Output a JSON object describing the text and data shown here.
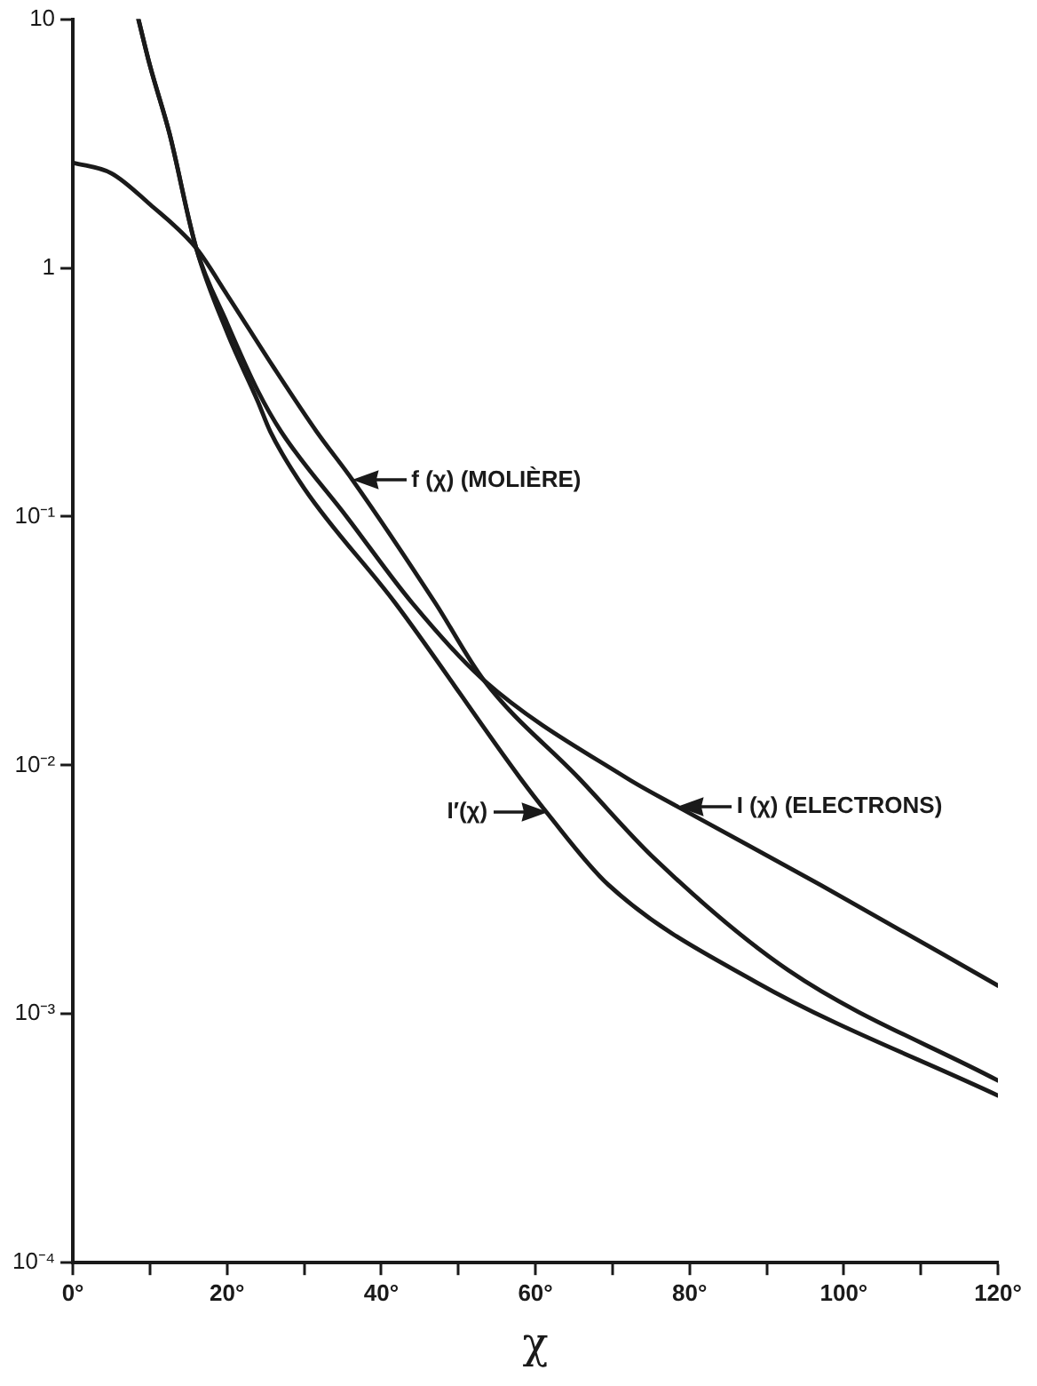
{
  "chart_data": {
    "type": "line",
    "xlabel": "χ",
    "log": "y",
    "grid": false,
    "legend": false,
    "marker": "none",
    "line_style": "solid",
    "xlim": [
      0,
      120
    ],
    "ylim": [
      0.0001,
      10
    ],
    "xticks": [
      {
        "value": 0,
        "label": "0°"
      },
      {
        "value": 10,
        "label": null
      },
      {
        "value": 20,
        "label": "20°"
      },
      {
        "value": 30,
        "label": null
      },
      {
        "value": 40,
        "label": "40°"
      },
      {
        "value": 50,
        "label": null
      },
      {
        "value": 60,
        "label": "60°"
      },
      {
        "value": 70,
        "label": null
      },
      {
        "value": 80,
        "label": "80°"
      },
      {
        "value": 90,
        "label": null
      },
      {
        "value": 100,
        "label": "100°"
      },
      {
        "value": 110,
        "label": null
      },
      {
        "value": 120,
        "label": "120°"
      }
    ],
    "yticks": [
      {
        "value": 0.0001,
        "label": "10⁻⁴"
      },
      {
        "value": 0.001,
        "label": "10⁻³"
      },
      {
        "value": 0.01,
        "label": "10⁻²"
      },
      {
        "value": 0.1,
        "label": "10⁻¹"
      },
      1,
      10
    ],
    "series": [
      {
        "color": "#1a1a1a",
        "x": [
          0,
          5,
          10,
          16,
          20,
          26,
          31.6,
          36.3,
          47,
          53.3,
          65.6,
          75.5,
          92.8,
          120
        ],
        "values": [
          2.65,
          2.4,
          1.8,
          1.2,
          0.78,
          0.4,
          0.22,
          0.14,
          0.045,
          0.022,
          0.0089,
          0.0042,
          0.0015,
          0.00054
        ]
      },
      {
        "color": "#1a1a1a",
        "x": [
          8.5,
          10,
          12.5,
          16,
          20,
          24,
          27,
          35.5,
          44,
          53.3,
          71.8,
          78.5,
          97,
          120
        ],
        "values": [
          10,
          6.5,
          3.5,
          1.2,
          0.6,
          0.32,
          0.22,
          0.1,
          0.045,
          0.022,
          0.0089,
          0.0068,
          0.0033,
          0.0013
        ]
      },
      {
        "color": "#1a1a1a",
        "x": [
          8.5,
          10,
          12.5,
          16,
          20,
          24,
          25.6,
          30,
          41.8,
          58,
          61.4,
          69.5,
          88.5,
          120
        ],
        "values": [
          10,
          6.5,
          3.5,
          1.2,
          0.55,
          0.29,
          0.22,
          0.13,
          0.045,
          0.0089,
          0.0065,
          0.0033,
          0.00135,
          0.00047
        ]
      }
    ],
    "annotations": [
      {
        "text": "f (χ) (MOLIÈRE)",
        "x": 36.3,
        "y": 0.14
      },
      {
        "text": "I (χ) (ELECTRONS)",
        "x": 78.5,
        "y": 0.0068
      },
      {
        "text": "I′(χ)",
        "x": 61.4,
        "y": 0.0065
      }
    ]
  }
}
